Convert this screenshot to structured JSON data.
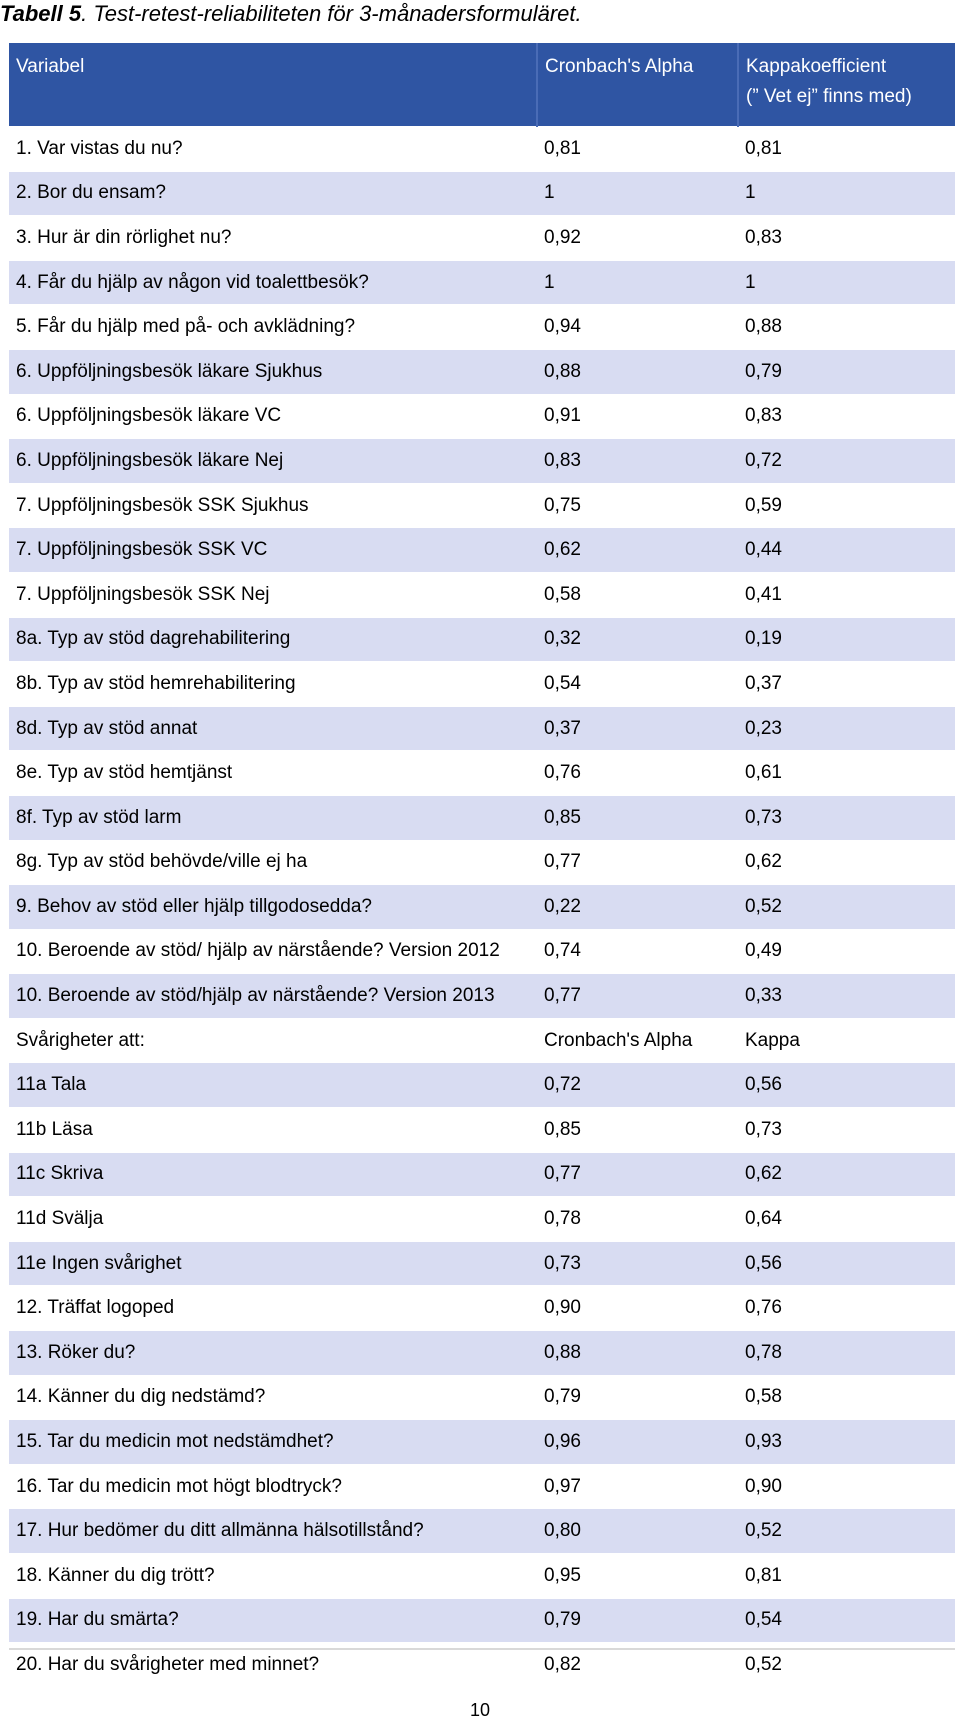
{
  "caption": {
    "label": "Tabell 5",
    "text": ". Test-retest-reliabiliteten för 3-månadersformuläret."
  },
  "table": {
    "headers": [
      "Variabel",
      "Cronbach's Alpha",
      "Kappakoefficient\n(” Vet ej” finns med)"
    ],
    "rows": [
      [
        "1. Var vistas du nu?",
        "0,81",
        "0,81"
      ],
      [
        "2. Bor du ensam?",
        "1",
        "1"
      ],
      [
        "3. Hur är din rörlighet nu?",
        "0,92",
        "0,83"
      ],
      [
        "4. Får du hjälp av någon vid toalettbesök?",
        "1",
        "1"
      ],
      [
        "5. Får du hjälp med på- och avklädning?",
        "0,94",
        "0,88"
      ],
      [
        "6. Uppföljningsbesök läkare Sjukhus",
        "0,88",
        "0,79"
      ],
      [
        "6. Uppföljningsbesök läkare VC",
        "0,91",
        "0,83"
      ],
      [
        "6. Uppföljningsbesök läkare Nej",
        "0,83",
        "0,72"
      ],
      [
        "7. Uppföljningsbesök SSK Sjukhus",
        "0,75",
        "0,59"
      ],
      [
        "7. Uppföljningsbesök SSK VC",
        "0,62",
        "0,44"
      ],
      [
        "7. Uppföljningsbesök SSK Nej",
        "0,58",
        "0,41"
      ],
      [
        "8a. Typ av stöd dagrehabilitering",
        "0,32",
        "0,19"
      ],
      [
        "8b. Typ av stöd hemrehabilitering",
        "0,54",
        "0,37"
      ],
      [
        "8d. Typ av stöd annat",
        "0,37",
        "0,23"
      ],
      [
        "8e. Typ av stöd hemtjänst",
        "0,76",
        "0,61"
      ],
      [
        "8f. Typ av stöd larm",
        "0,85",
        "0,73"
      ],
      [
        "8g. Typ av stöd behövde/ville ej ha",
        "0,77",
        "0,62"
      ],
      [
        "9. Behov av stöd eller hjälp tillgodosedda?",
        "0,22",
        "0,52"
      ],
      [
        "10. Beroende av stöd/ hjälp av närstående? Version 2012",
        "0,74",
        "0,49"
      ],
      [
        "10. Beroende av stöd/hjälp av närstående? Version 2013",
        "0,77",
        "0,33"
      ],
      [
        "Svårigheter att:",
        "Cronbach's Alpha",
        "Kappa"
      ],
      [
        "11a Tala",
        "0,72",
        "0,56"
      ],
      [
        "11b Läsa",
        "0,85",
        "0,73"
      ],
      [
        "11c Skriva",
        "0,77",
        "0,62"
      ],
      [
        "11d Svälja",
        "0,78",
        "0,64"
      ],
      [
        "11e Ingen svårighet",
        "0,73",
        "0,56"
      ],
      [
        "12. Träffat logoped",
        "0,90",
        "0,76"
      ],
      [
        "13. Röker du?",
        "0,88",
        "0,78"
      ],
      [
        "14. Känner du dig nedstämd?",
        "0,79",
        "0,58"
      ],
      [
        "15. Tar du medicin mot nedstämdhet?",
        "0,96",
        "0,93"
      ],
      [
        "16. Tar du medicin mot högt blodtryck?",
        "0,97",
        "0,90"
      ],
      [
        "17. Hur bedömer du ditt allmänna hälsotillstånd?",
        "0,80",
        "0,52"
      ],
      [
        "18. Känner du dig trött?",
        "0,95",
        "0,81"
      ],
      [
        "19. Har du smärta?",
        "0,79",
        "0,54"
      ],
      [
        "20. Har du svårigheter med minnet?",
        "0,82",
        "0,52"
      ]
    ]
  },
  "page_number": "10"
}
